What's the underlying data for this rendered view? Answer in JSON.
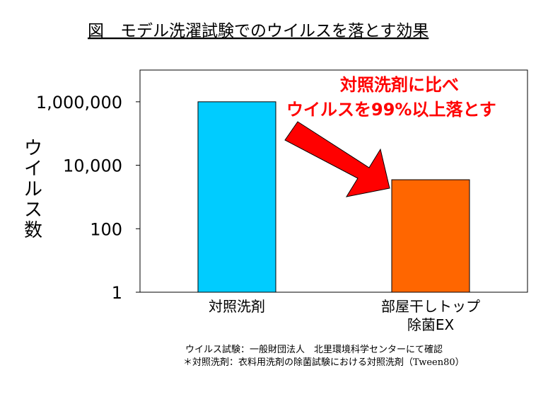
{
  "chart_data": {
    "type": "bar",
    "title": "図　モデル洗濯試験でのウイルスを落とす効果",
    "ylabel": "ウイルス数",
    "xlabel": "",
    "yscale": "log",
    "ylim": [
      1,
      10000000
    ],
    "yticks": [
      {
        "value": 1,
        "label": "1"
      },
      {
        "value": 100,
        "label": "100"
      },
      {
        "value": 10000,
        "label": "10,000"
      },
      {
        "value": 1000000,
        "label": "1,000,000"
      }
    ],
    "categories": [
      {
        "lines": [
          "対照洗剤"
        ]
      },
      {
        "lines": [
          "部屋干しトップ",
          "除菌EX"
        ]
      }
    ],
    "values": [
      1000000,
      3500
    ],
    "colors": [
      "#00CCFF",
      "#FF6600"
    ],
    "grid": false,
    "legend": "none",
    "annotation": {
      "lines": [
        "対照洗剤に比べ",
        "ウイルスを99%以上落とす"
      ],
      "color": "#FF0000",
      "arrow_color": "#FF0000"
    },
    "notes": [
      "ウイルス試験：一般財団法人　北里環境科学センターにて確認",
      "＊対照洗剤：衣料用洗剤の除菌試験における対照洗剤（Tween80）"
    ]
  }
}
